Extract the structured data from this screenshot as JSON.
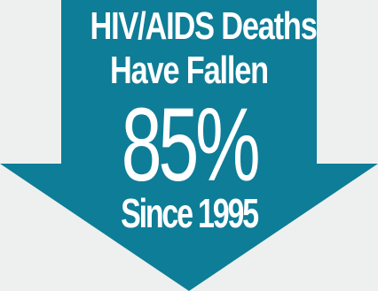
{
  "background_color": "#edf0ef",
  "arrow_color": "#0e7d97",
  "text_color": "#ffffff",
  "arrow_icon": "down-arrow",
  "headline": {
    "line1": "HIV/AIDS Deaths",
    "line2": "Have Fallen",
    "percentage": "85%",
    "since": "Since 1995"
  }
}
